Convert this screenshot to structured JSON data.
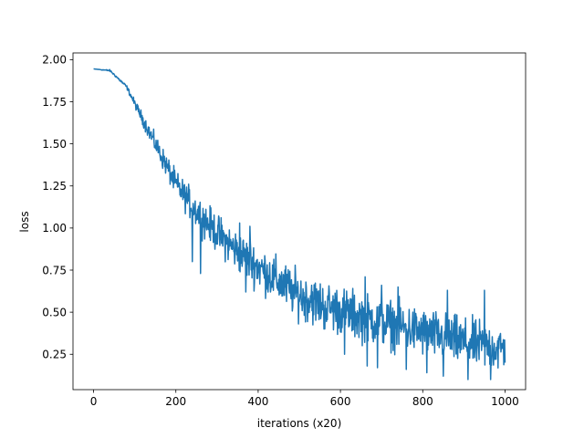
{
  "chart_data": {
    "type": "line",
    "title": "",
    "xlabel": "iterations (x20)",
    "ylabel": "loss",
    "xlim": [
      -50,
      1050
    ],
    "ylim": [
      0.04,
      2.04
    ],
    "xticks": [
      0,
      200,
      400,
      600,
      800,
      1000
    ],
    "yticks": [
      0.25,
      0.5,
      0.75,
      1.0,
      1.25,
      1.5,
      1.75,
      2.0
    ],
    "xtick_labels": [
      "0",
      "200",
      "400",
      "600",
      "800",
      "1000"
    ],
    "ytick_labels": [
      "0.25",
      "0.50",
      "0.75",
      "1.00",
      "1.25",
      "1.50",
      "1.75",
      "2.00"
    ],
    "grid": false,
    "series": [
      {
        "color": "#1f77b4",
        "trend": [
          [
            0,
            1.945
          ],
          [
            40,
            1.935
          ],
          [
            80,
            1.84
          ],
          [
            100,
            1.74
          ],
          [
            150,
            1.5
          ],
          [
            200,
            1.26
          ],
          [
            250,
            1.1
          ],
          [
            300,
            0.97
          ],
          [
            350,
            0.86
          ],
          [
            400,
            0.77
          ],
          [
            450,
            0.68
          ],
          [
            500,
            0.6
          ],
          [
            550,
            0.55
          ],
          [
            600,
            0.51
          ],
          [
            650,
            0.47
          ],
          [
            700,
            0.44
          ],
          [
            750,
            0.41
          ],
          [
            800,
            0.38
          ],
          [
            850,
            0.35
          ],
          [
            900,
            0.32
          ],
          [
            950,
            0.3
          ],
          [
            1000,
            0.28
          ]
        ],
        "noise_envelope": [
          [
            0,
            0.0
          ],
          [
            80,
            0.01
          ],
          [
            150,
            0.05
          ],
          [
            250,
            0.09
          ],
          [
            400,
            0.12
          ],
          [
            600,
            0.13
          ],
          [
            800,
            0.13
          ],
          [
            1000,
            0.13
          ]
        ],
        "spikes_up": [
          [
            230,
            1.16
          ],
          [
            290,
            1.02
          ],
          [
            355,
            1.03
          ],
          [
            380,
            1.01
          ],
          [
            530,
            0.66
          ],
          [
            660,
            0.71
          ],
          [
            700,
            0.66
          ],
          [
            740,
            0.65
          ],
          [
            860,
            0.63
          ],
          [
            950,
            0.63
          ]
        ],
        "spikes_down": [
          [
            240,
            0.8
          ],
          [
            260,
            0.73
          ],
          [
            370,
            0.62
          ],
          [
            480,
            0.58
          ],
          [
            560,
            0.4
          ],
          [
            610,
            0.25
          ],
          [
            665,
            0.18
          ],
          [
            690,
            0.17
          ],
          [
            760,
            0.16
          ],
          [
            810,
            0.14
          ],
          [
            850,
            0.12
          ],
          [
            910,
            0.1
          ],
          [
            965,
            0.1
          ]
        ],
        "end_point": [
          1000,
          0.2
        ]
      }
    ]
  }
}
